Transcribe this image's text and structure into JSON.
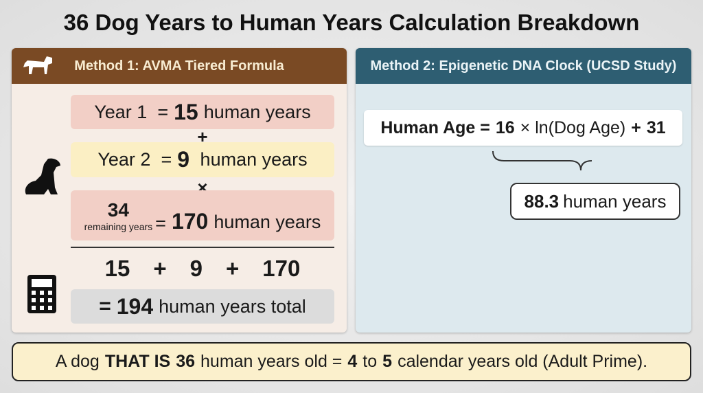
{
  "title": "36 Dog Years to Human Years Calculation Breakdown",
  "method1": {
    "heading": "Method 1: AVMA Tiered Formula",
    "rows": [
      {
        "label": "Year 1",
        "eq": "=",
        "value": 15,
        "unit": "human years"
      },
      {
        "label": "Year 2",
        "eq": "=",
        "value": 9,
        "unit": "human years"
      },
      {
        "label": 34,
        "sublabel": "remaining years",
        "eq": "=",
        "value": 170,
        "unit": "human years"
      }
    ],
    "operators": [
      "+",
      "×"
    ],
    "sum": [
      15,
      "+",
      9,
      "+",
      170
    ],
    "total": {
      "eq": "=",
      "value": 194,
      "unit": "human years total"
    }
  },
  "method2": {
    "heading": "Method 2: Epigenetic DNA Clock (UCSD Study)",
    "formula": [
      {
        "text": "Human Age =",
        "bold": true
      },
      {
        "text": 16,
        "bold": true
      },
      {
        "text": "× ln(Dog Age)",
        "bold": false
      },
      {
        "text": "+",
        "bold": true
      },
      {
        "text": 31,
        "bold": true
      }
    ],
    "result": {
      "value": 88.3,
      "unit": "human years"
    }
  },
  "footer": [
    {
      "text": "A dog",
      "bold": false
    },
    {
      "text": "THAT IS",
      "bold": true
    },
    {
      "text": 36,
      "bold": true
    },
    {
      "text": "human years old =",
      "bold": false
    },
    {
      "text": 4,
      "bold": true
    },
    {
      "text": "to",
      "bold": false
    },
    {
      "text": 5,
      "bold": true
    },
    {
      "text": "calendar years old (Adult Prime).",
      "bold": false
    }
  ]
}
